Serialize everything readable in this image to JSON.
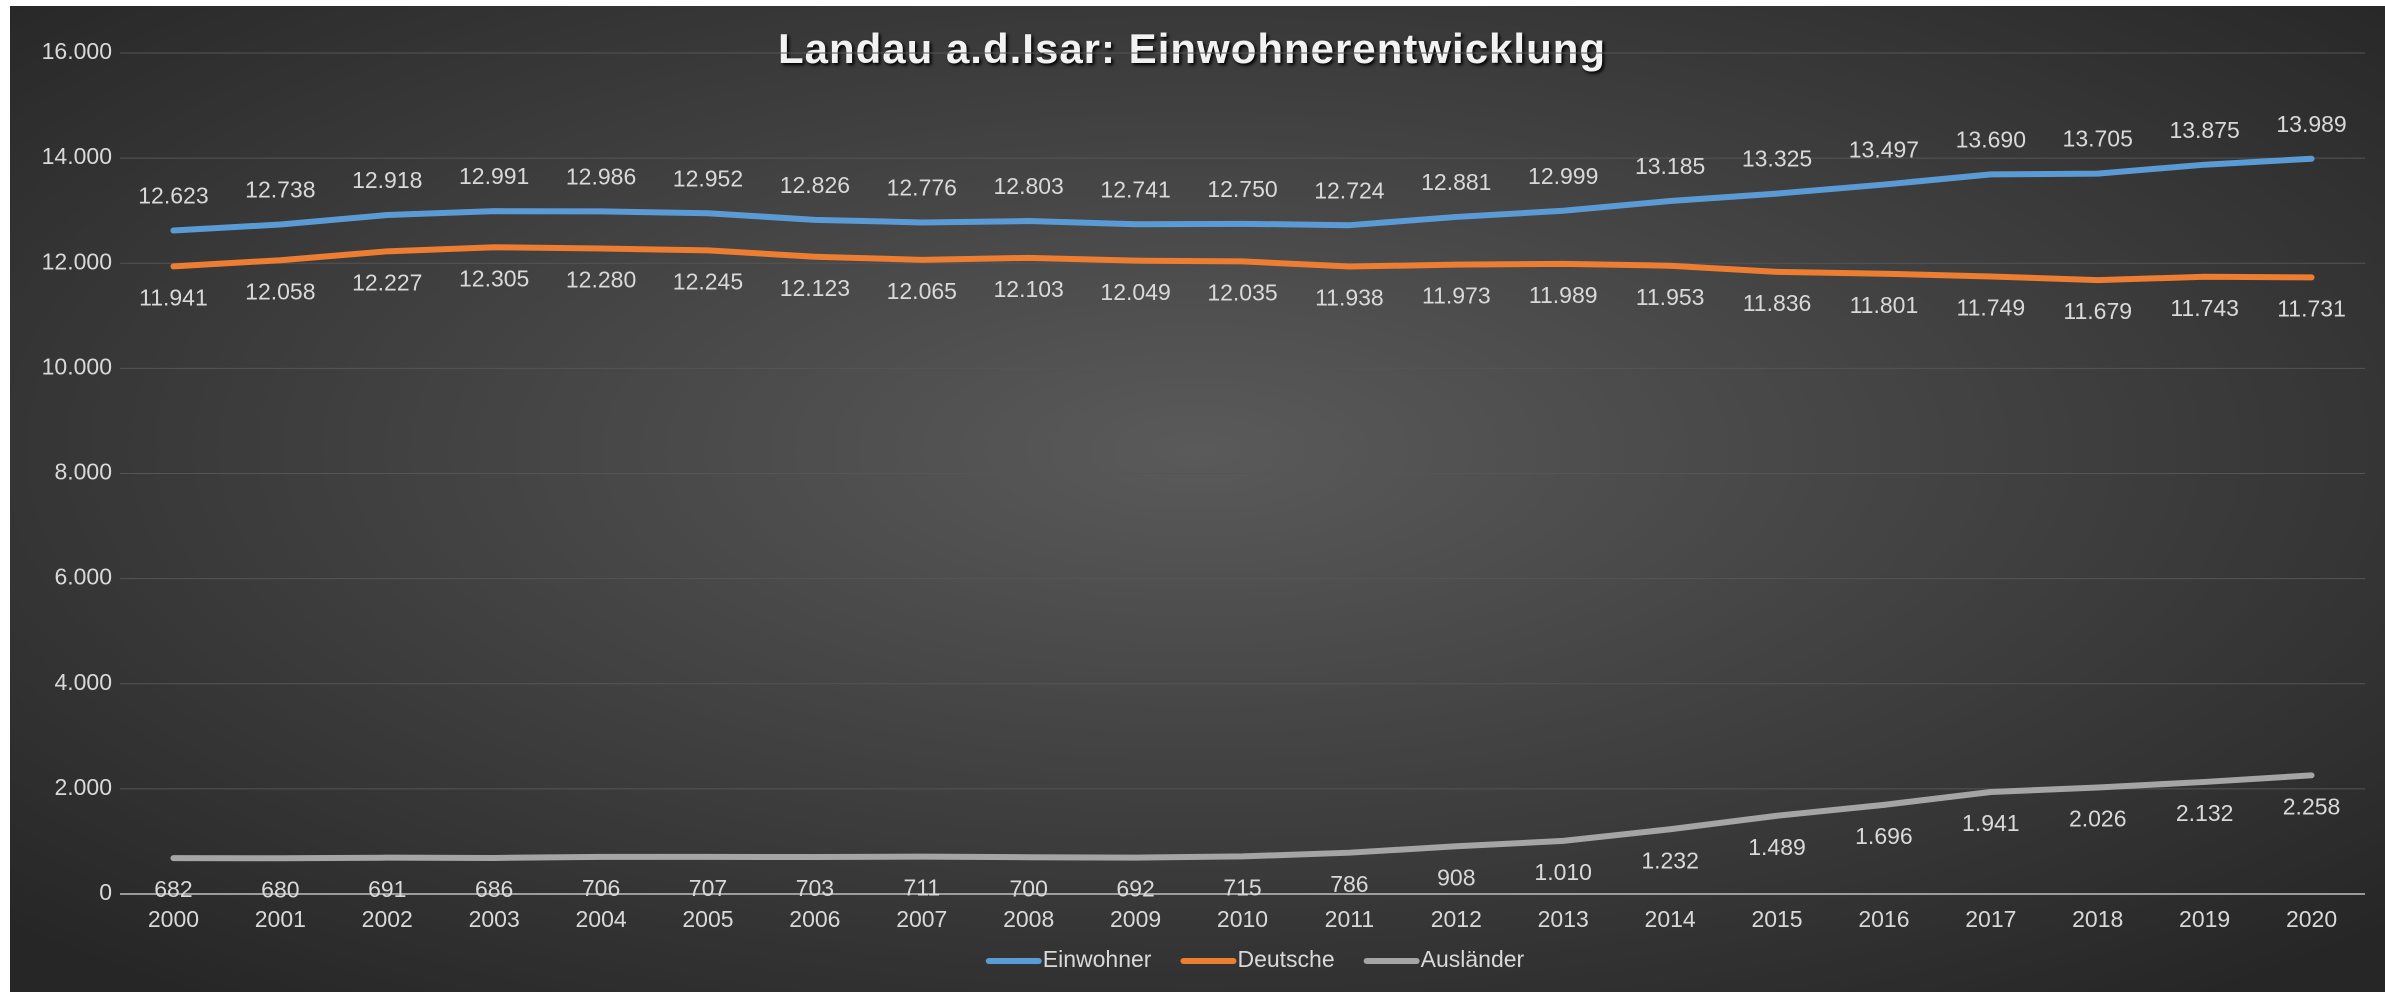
{
  "chart_data": {
    "type": "line",
    "title": "Landau a.d.Isar: Einwohnerentwicklung",
    "categories": [
      "2000",
      "2001",
      "2002",
      "2003",
      "2004",
      "2005",
      "2006",
      "2007",
      "2008",
      "2009",
      "2010",
      "2011",
      "2012",
      "2013",
      "2014",
      "2015",
      "2016",
      "2017",
      "2018",
      "2019",
      "2020"
    ],
    "series": [
      {
        "name": "Einwohner",
        "color": "#5b9bd5",
        "values": [
          12623,
          12738,
          12918,
          12991,
          12986,
          12952,
          12826,
          12776,
          12803,
          12741,
          12750,
          12724,
          12881,
          12999,
          13185,
          13325,
          13497,
          13690,
          13705,
          13875,
          13989
        ],
        "value_labels": [
          "12.623",
          "12.738",
          "12.918",
          "12.991",
          "12.986",
          "12.952",
          "12.826",
          "12.776",
          "12.803",
          "12.741",
          "12.750",
          "12.724",
          "12.881",
          "12.999",
          "13.185",
          "13.325",
          "13.497",
          "13.690",
          "13.705",
          "13.875",
          "13.989"
        ]
      },
      {
        "name": "Deutsche",
        "color": "#ed7d31",
        "values": [
          11941,
          12058,
          12227,
          12305,
          12280,
          12245,
          12123,
          12065,
          12103,
          12049,
          12035,
          11938,
          11973,
          11989,
          11953,
          11836,
          11801,
          11749,
          11679,
          11743,
          11731
        ],
        "value_labels": [
          "11.941",
          "12.058",
          "12.227",
          "12.305",
          "12.280",
          "12.245",
          "12.123",
          "12.065",
          "12.103",
          "12.049",
          "12.035",
          "11.938",
          "11.973",
          "11.989",
          "11.953",
          "11.836",
          "11.801",
          "11.749",
          "11.679",
          "11.743",
          "11.731"
        ]
      },
      {
        "name": "Ausländer",
        "color": "#a5a5a5",
        "values": [
          682,
          680,
          691,
          686,
          706,
          707,
          703,
          711,
          700,
          692,
          715,
          786,
          908,
          1010,
          1232,
          1489,
          1696,
          1941,
          2026,
          2132,
          2258
        ],
        "value_labels": [
          "682",
          "680",
          "691",
          "686",
          "706",
          "707",
          "703",
          "711",
          "700",
          "692",
          "715",
          "786",
          "908",
          "1.010",
          "1.232",
          "1.489",
          "1.696",
          "1.941",
          "2.026",
          "2.132",
          "2.258"
        ]
      }
    ],
    "ylim": [
      0,
      16000
    ],
    "yticks": [
      0,
      {
        "value": 2000,
        "label": "2.000"
      },
      {
        "value": 4000,
        "label": "4.000"
      },
      {
        "value": 6000,
        "label": "6.000"
      },
      {
        "value": 8000,
        "label": "8.000"
      },
      {
        "value": 10000,
        "label": "10.000"
      },
      {
        "value": 12000,
        "label": "12.000"
      },
      {
        "value": 14000,
        "label": "14.000"
      },
      {
        "value": 16000,
        "label": "16.000"
      }
    ],
    "grid": true,
    "legend": "bottom"
  }
}
